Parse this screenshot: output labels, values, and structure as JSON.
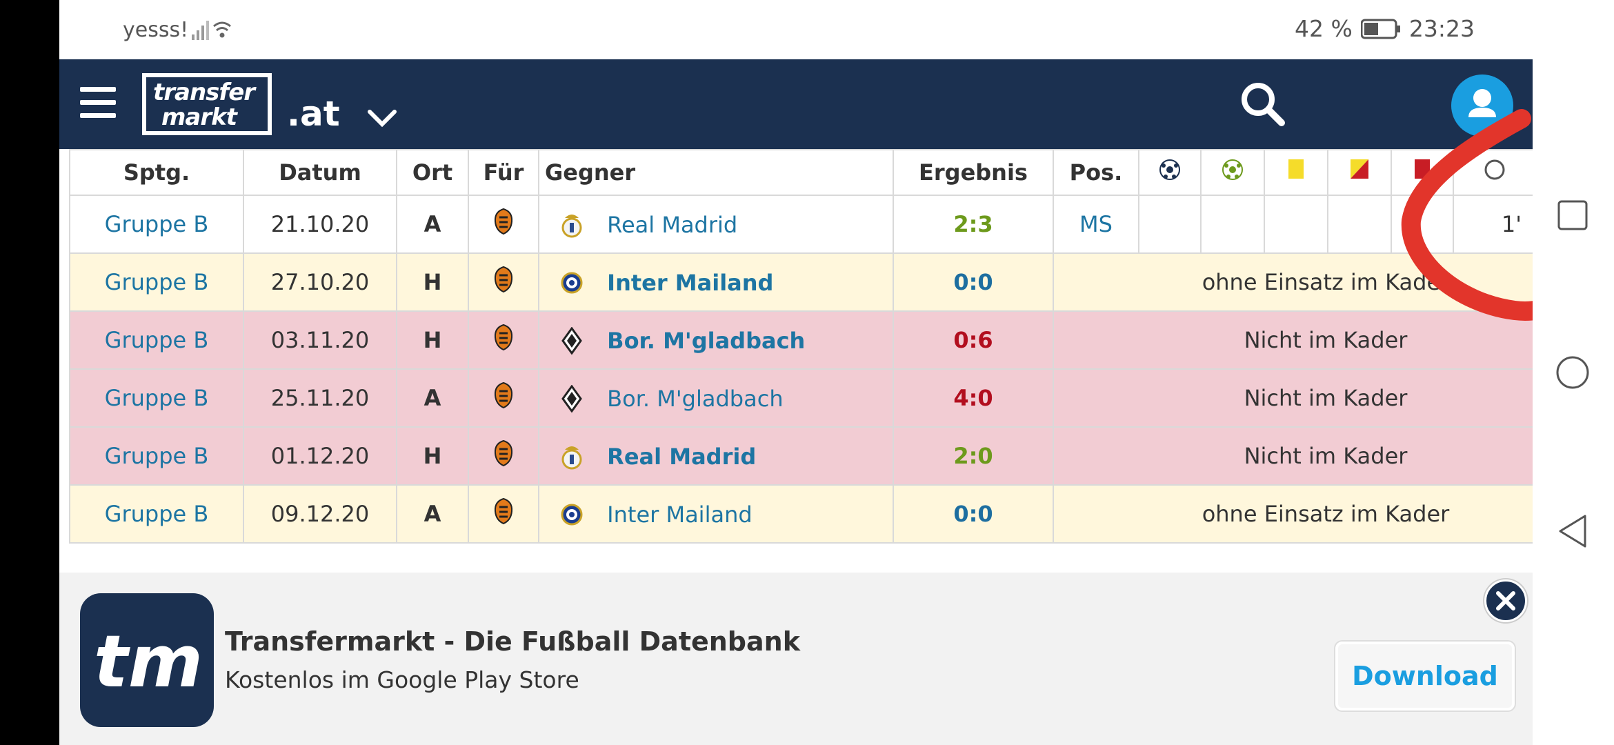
{
  "status_bar": {
    "carrier": "yesss!",
    "battery_percent": "42 %",
    "time": "23:23"
  },
  "header": {
    "domain": ".at",
    "logo_line1": "transfer",
    "logo_line2": "markt"
  },
  "table": {
    "headers": {
      "competition": "Sptg.",
      "date": "Datum",
      "venue": "Ort",
      "for": "Für",
      "opponent": "Gegner",
      "result": "Ergebnis",
      "position": "Pos."
    },
    "rows": [
      {
        "comp": "Gruppe B",
        "date": "21.10.20",
        "venue": "A",
        "opponent": "Real Madrid",
        "result": "2:3",
        "pos": "MS",
        "minutes": "1'",
        "status": ""
      },
      {
        "comp": "Gruppe B",
        "date": "27.10.20",
        "venue": "H",
        "opponent": "Inter Mailand",
        "result": "0:0",
        "status": "ohne Einsatz im Kader"
      },
      {
        "comp": "Gruppe B",
        "date": "03.11.20",
        "venue": "H",
        "opponent": "Bor. M'gladbach",
        "result": "0:6",
        "status": "Nicht im Kader"
      },
      {
        "comp": "Gruppe B",
        "date": "25.11.20",
        "venue": "A",
        "opponent": "Bor. M'gladbach",
        "result": "4:0",
        "status": "Nicht im Kader"
      },
      {
        "comp": "Gruppe B",
        "date": "01.12.20",
        "venue": "H",
        "opponent": "Real Madrid",
        "result": "2:0",
        "status": "Nicht im Kader"
      },
      {
        "comp": "Gruppe B",
        "date": "09.12.20",
        "venue": "A",
        "opponent": "Inter Mailand",
        "result": "0:0",
        "status": "ohne Einsatz im Kader"
      }
    ]
  },
  "banner": {
    "icon_text": "tm",
    "title": "Transfermarkt - Die Fußball Datenbank",
    "subtitle": "Kostenlos im Google Play Store",
    "download_label": "Download"
  }
}
